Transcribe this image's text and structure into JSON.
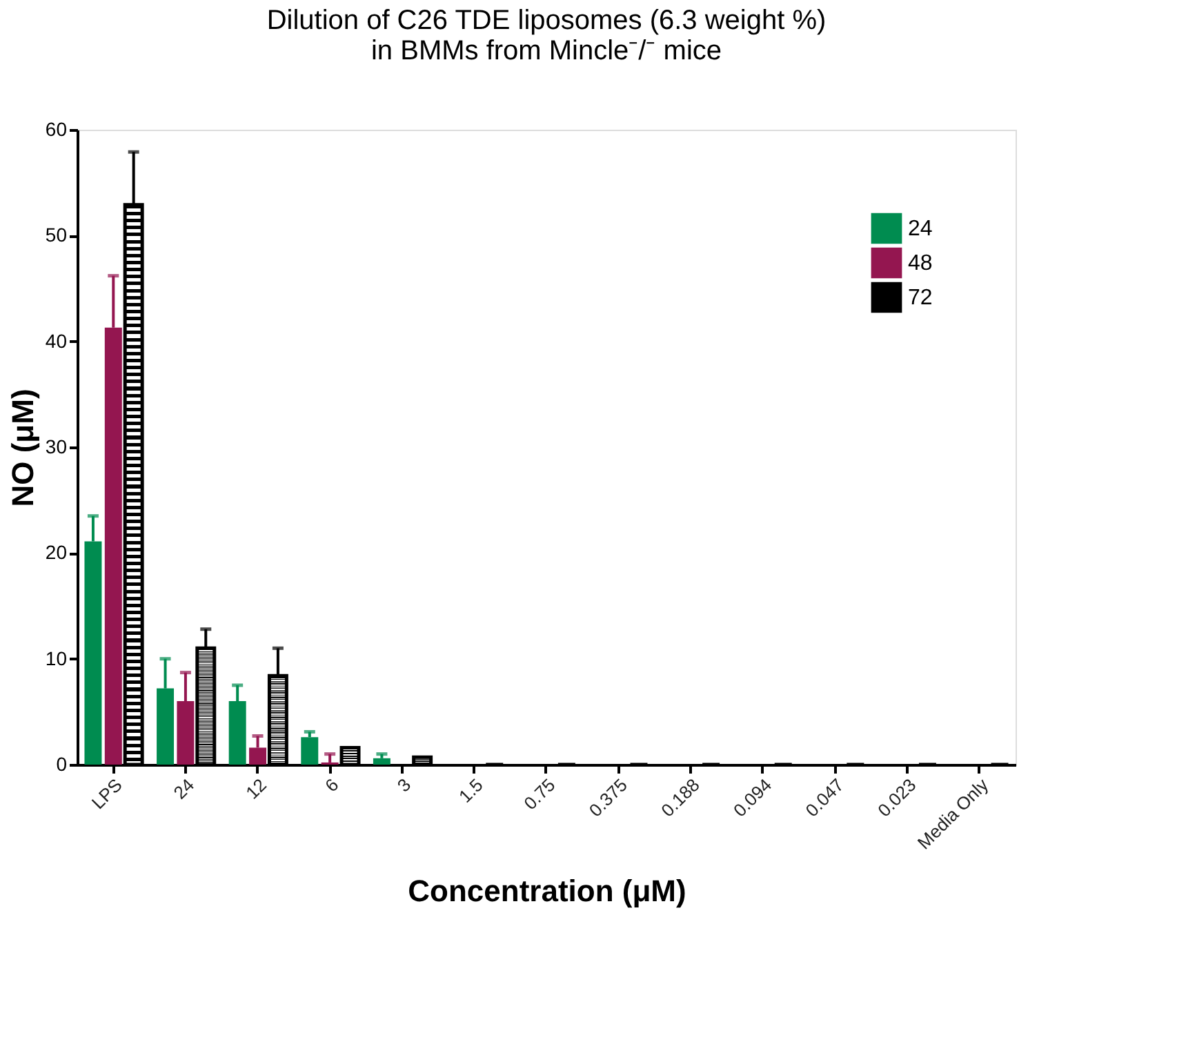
{
  "chart_data": {
    "type": "bar",
    "title": [
      "Dilution of C26 TDE liposomes (6.3 weight %)",
      "in BMMs from Mincle⁻/⁻ mice"
    ],
    "xlabel": "Concentration (μM)",
    "ylabel": "NO (μM)",
    "legend": "top right",
    "categories": [
      "LPS",
      "24",
      "12",
      "6",
      "3",
      "1.5",
      "0.75",
      "0.375",
      "0.188",
      "0.094",
      "0.047",
      "0.023",
      "Media Only"
    ],
    "series": [
      {
        "name": "24",
        "color": "#008c50",
        "values": [
          21.1,
          7.2,
          6.0,
          2.6,
          0.6,
          0,
          0,
          0,
          0,
          0,
          0,
          0,
          0
        ],
        "errors": [
          [
            21.1,
            23.5
          ],
          [
            7.2,
            10.0
          ],
          [
            6.0,
            7.5
          ],
          [
            2.6,
            3.1
          ],
          [
            0.6,
            1.0
          ],
          null,
          null,
          null,
          null,
          null,
          null,
          null,
          null
        ]
      },
      {
        "name": "48",
        "color": "#941650",
        "values": [
          41.3,
          6.0,
          1.6,
          0.2,
          0,
          0,
          0,
          0,
          0,
          0,
          0,
          0,
          0
        ],
        "errors": [
          [
            41.3,
            46.2
          ],
          [
            6.0,
            8.7
          ],
          [
            1.6,
            2.7
          ],
          [
            0.2,
            1.0
          ],
          null,
          null,
          null,
          null,
          null,
          null,
          null,
          null,
          null
        ]
      },
      {
        "name": "72",
        "color": "#000000",
        "values": [
          52.9,
          11.0,
          8.4,
          1.6,
          0.7,
          0,
          0,
          0,
          0,
          0,
          0,
          0,
          0
        ],
        "errors": [
          [
            52.9,
            57.9
          ],
          [
            11.0,
            12.8
          ],
          [
            8.4,
            11.0
          ],
          null,
          null,
          null,
          null,
          null,
          null,
          null,
          null,
          null,
          null
        ]
      }
    ],
    "ylim": [
      0,
      60
    ],
    "yticks": [
      0,
      10,
      20,
      30,
      40,
      50,
      60
    ],
    "grid": false
  }
}
